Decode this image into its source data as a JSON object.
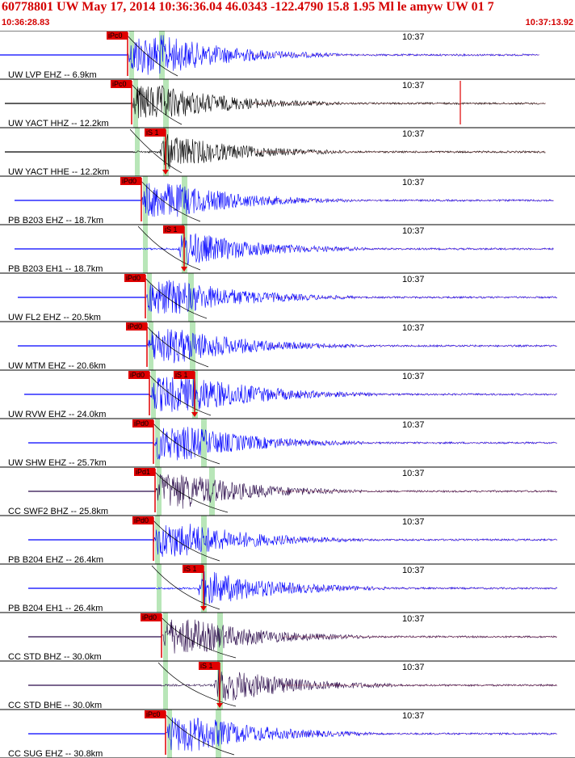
{
  "header": {
    "title": "60778801 UW May 17, 2014 10:36:36.04   46.0343 -122.4790 15.8 1.95 Ml le amyw UW 01   7",
    "start_time": "10:36:28.83",
    "end_time": "10:37:13.92"
  },
  "chart_data": {
    "type": "seismogram-panels",
    "time_tick_label": "10:37",
    "colors": {
      "blue": "#0000ff",
      "black": "#000000",
      "dark": "#2a0a4a",
      "pick": "#e00000",
      "window": "#b8e6b8"
    },
    "traces": [
      {
        "label": "UW LVP EHZ -- 6.9km",
        "color": "blue",
        "p_pick": "iPc0",
        "s_pick": "",
        "big_p": true
      },
      {
        "label": "UW YACT HHZ -- 12.2km",
        "color": "black",
        "p_pick": "iPc0",
        "s_pick": "",
        "spike": true
      },
      {
        "label": "UW YACT HHE -- 12.2km",
        "color": "black",
        "p_pick": "",
        "s_pick": "iS 1"
      },
      {
        "label": "PB B203 EHZ -- 18.7km",
        "color": "blue",
        "p_pick": "iPd0",
        "s_pick": ""
      },
      {
        "label": "PB B203 EH1 -- 18.7km",
        "color": "blue",
        "p_pick": "",
        "s_pick": "iS 1"
      },
      {
        "label": "UW FL2 EHZ -- 20.5km",
        "color": "blue",
        "p_pick": "iPd0",
        "s_pick": ""
      },
      {
        "label": "UW MTM EHZ -- 20.6km",
        "color": "blue",
        "p_pick": "iPd0",
        "s_pick": ""
      },
      {
        "label": "UW RVW EHZ -- 24.0km",
        "color": "blue",
        "p_pick": "iPd0",
        "s_pick": "iS 1"
      },
      {
        "label": "UW SHW EHZ -- 25.7km",
        "color": "blue",
        "p_pick": "iPd0",
        "s_pick": ""
      },
      {
        "label": "CC SWF2 BHZ -- 25.8km",
        "color": "dark",
        "p_pick": "iPd1",
        "s_pick": ""
      },
      {
        "label": "PB B204 EHZ -- 26.4km",
        "color": "blue",
        "p_pick": "iPd0",
        "s_pick": ""
      },
      {
        "label": "PB B204 EH1 -- 26.4km",
        "color": "blue",
        "p_pick": "",
        "s_pick": "iS 1"
      },
      {
        "label": "CC STD BHZ -- 30.0km",
        "color": "dark",
        "p_pick": "iPd0",
        "s_pick": ""
      },
      {
        "label": "CC STD BHE -- 30.0km",
        "color": "dark",
        "p_pick": "",
        "s_pick": "iS 1"
      },
      {
        "label": "CC SUG EHZ -- 30.8km",
        "color": "blue",
        "p_pick": "iPc0",
        "s_pick": ""
      }
    ]
  }
}
